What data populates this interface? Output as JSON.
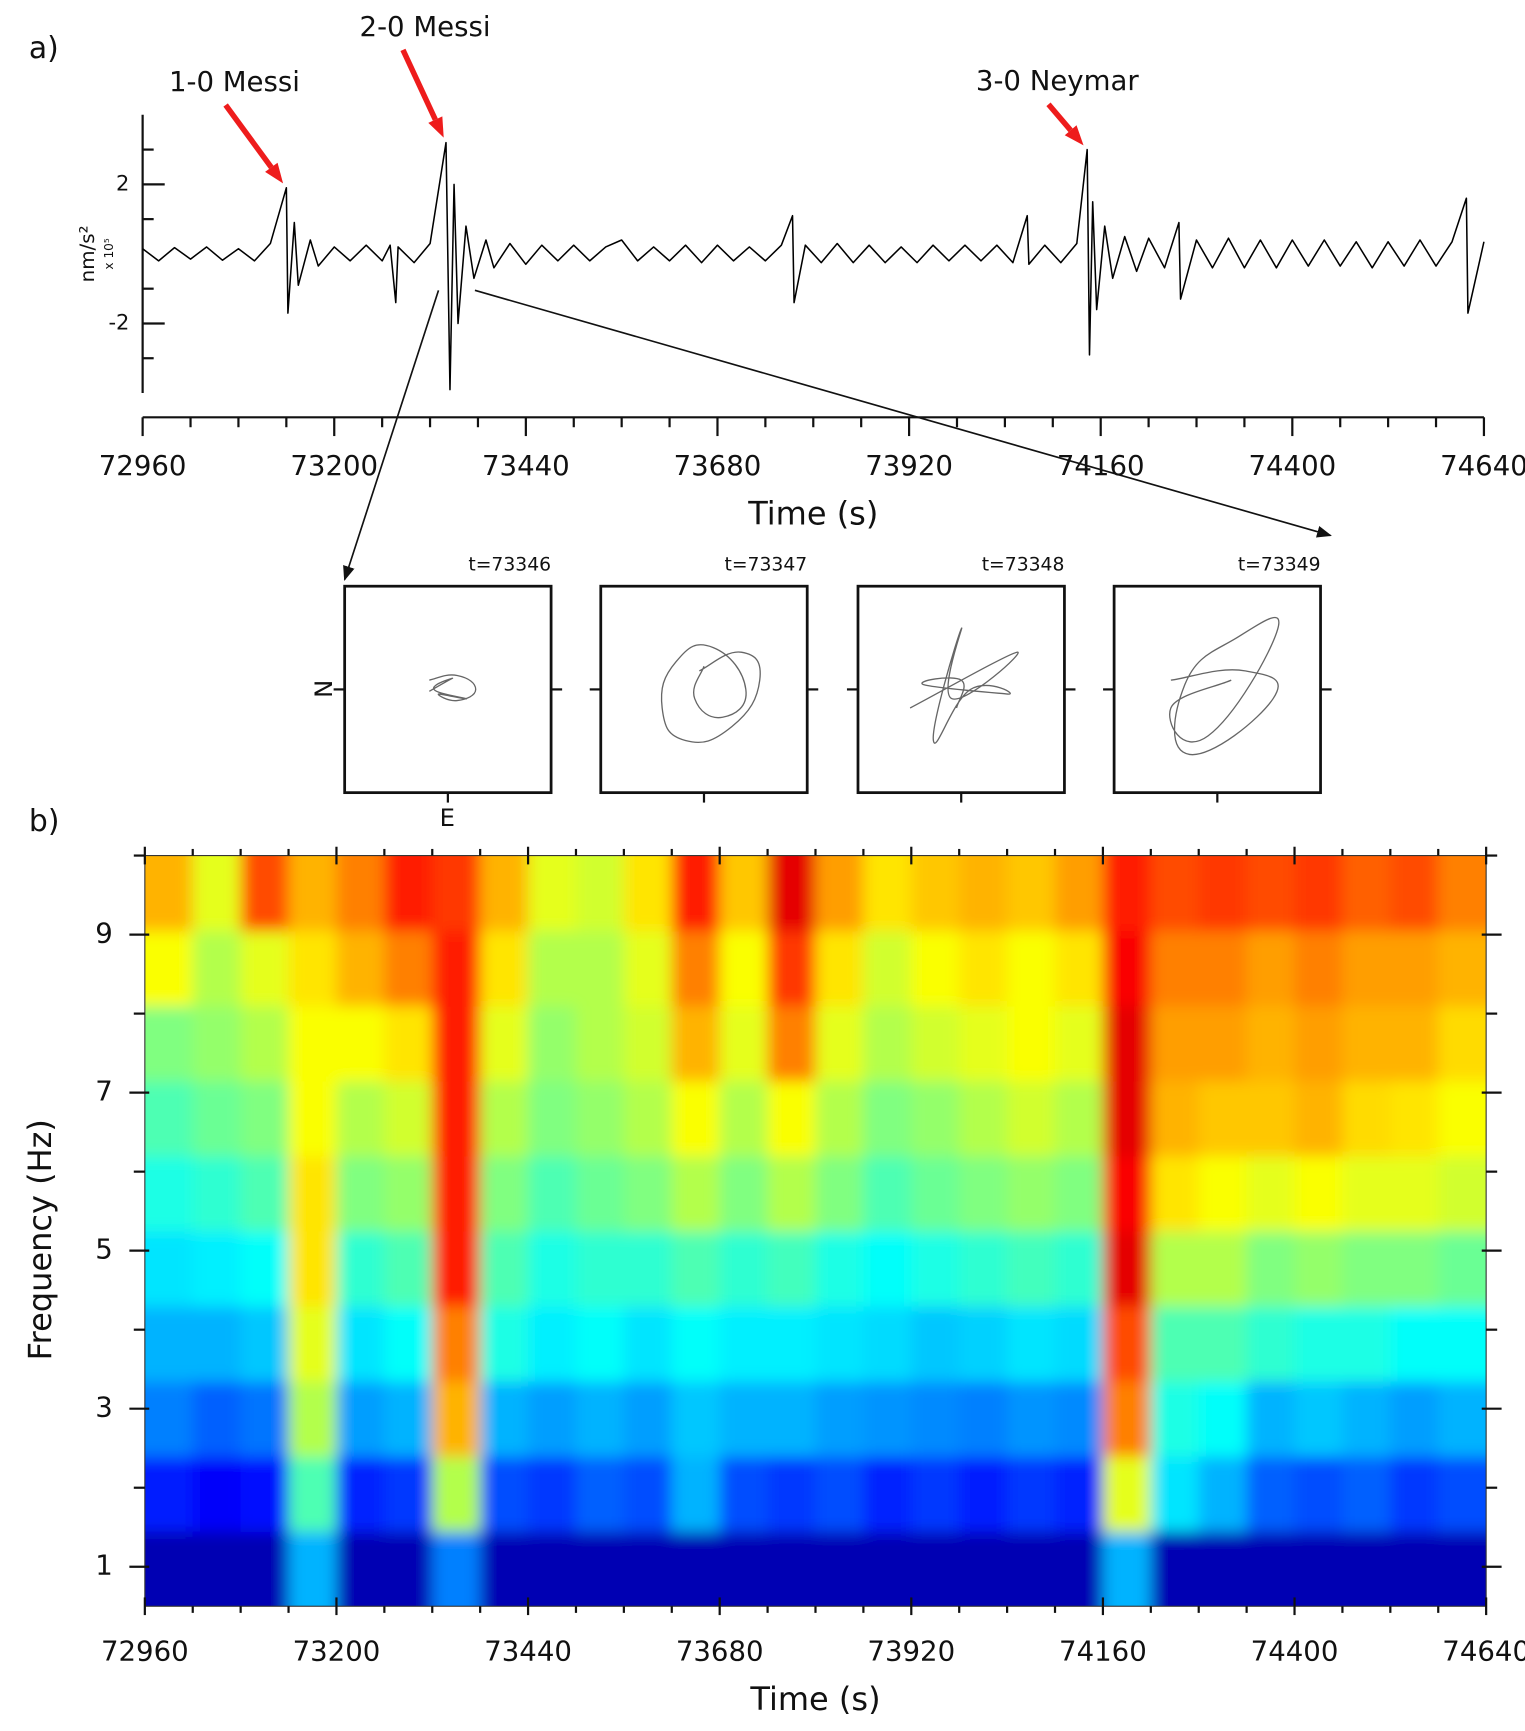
{
  "chart_data": [
    {
      "type": "line",
      "panel_label": "a)",
      "xlabel": "Time (s)",
      "ylabel": "nm/s²",
      "ylabel_scale": "x 10⁵",
      "xlim": [
        72960,
        74640
      ],
      "xticks": [
        72960,
        73200,
        73440,
        73680,
        73920,
        74160,
        74400,
        74640
      ],
      "xminorticks": [
        73020,
        73080,
        73140,
        73260,
        73320,
        73380,
        73500,
        73560,
        73620,
        73740,
        73800,
        73860,
        73980,
        74040,
        74100,
        74220,
        74280,
        74340,
        74460,
        74520,
        74580
      ],
      "ylim": [
        -4,
        4
      ],
      "yticks": [
        -2,
        2
      ],
      "yminorticks": [
        -3,
        -1,
        1,
        3
      ],
      "color": "#000000",
      "annotations": [
        {
          "text": "1-0 Messi",
          "x": 73140,
          "y": 1.9
        },
        {
          "text": "2-0 Messi",
          "x": 73340,
          "y": 3.2
        },
        {
          "text": "3-0 Neymar",
          "x": 74143,
          "y": 3.0
        }
      ],
      "annotation_color": "#ee1c1c",
      "x": [
        72960,
        72980,
        73000,
        73020,
        73040,
        73060,
        73080,
        73100,
        73120,
        73140,
        73142,
        73150,
        73155,
        73170,
        73180,
        73200,
        73220,
        73240,
        73260,
        73270,
        73277,
        73280,
        73300,
        73320,
        73340,
        73345,
        73350,
        73355,
        73365,
        73375,
        73390,
        73400,
        73420,
        73440,
        73460,
        73480,
        73500,
        73520,
        73540,
        73560,
        73580,
        73600,
        73620,
        73640,
        73660,
        73680,
        73700,
        73720,
        73740,
        73760,
        73774,
        73776,
        73790,
        73810,
        73830,
        73850,
        73870,
        73890,
        73910,
        73930,
        73950,
        73970,
        73990,
        74010,
        74030,
        74050,
        74068,
        74070,
        74090,
        74110,
        74130,
        74143,
        74146,
        74150,
        74155,
        74165,
        74175,
        74190,
        74205,
        74220,
        74240,
        74258,
        74260,
        74280,
        74300,
        74320,
        74340,
        74360,
        74380,
        74400,
        74420,
        74440,
        74460,
        74480,
        74500,
        74520,
        74540,
        74560,
        74580,
        74600,
        74618,
        74620,
        74640
      ],
      "values": [
        0.15,
        -0.2,
        0.18,
        -0.15,
        0.2,
        -0.18,
        0.15,
        -0.2,
        0.3,
        1.9,
        -1.7,
        0.9,
        -0.9,
        0.4,
        -0.35,
        0.2,
        -0.2,
        0.25,
        -0.2,
        0.25,
        -1.4,
        0.2,
        -0.25,
        0.3,
        3.2,
        -3.9,
        2.0,
        -2.0,
        0.8,
        -0.7,
        0.4,
        -0.4,
        0.3,
        -0.3,
        0.25,
        -0.2,
        0.25,
        -0.2,
        0.2,
        0.4,
        -0.2,
        0.2,
        -0.2,
        0.25,
        -0.25,
        0.25,
        -0.2,
        0.2,
        -0.2,
        0.25,
        1.1,
        -1.4,
        0.25,
        -0.25,
        0.3,
        -0.25,
        0.25,
        -0.25,
        0.2,
        -0.25,
        0.25,
        -0.2,
        0.25,
        -0.2,
        0.25,
        -0.25,
        1.1,
        -0.3,
        0.25,
        -0.25,
        0.3,
        3.0,
        -2.9,
        1.5,
        -1.6,
        0.8,
        -0.7,
        0.5,
        -0.5,
        0.45,
        -0.4,
        0.9,
        -1.3,
        0.4,
        -0.4,
        0.45,
        -0.4,
        0.4,
        -0.4,
        0.4,
        -0.35,
        0.4,
        -0.35,
        0.35,
        -0.4,
        0.35,
        -0.35,
        0.4,
        -0.35,
        0.35,
        1.6,
        -1.7,
        0.35
      ]
    },
    {
      "type": "particle_motion",
      "xlabel": "E",
      "ylabel": "N",
      "color": "#666666",
      "plots": [
        {
          "title": "t=73346",
          "e": [
            -0.2,
            0.1,
            0.3,
            0.1,
            -0.1,
            0.2,
            -0.15,
            0.05,
            -0.2
          ],
          "n": [
            0.1,
            0.15,
            0.0,
            -0.12,
            -0.05,
            -0.1,
            0.0,
            0.12,
            -0.02
          ]
        },
        {
          "title": "t=73347",
          "e": [
            -0.05,
            0.4,
            0.6,
            0.3,
            -0.2,
            -0.45,
            -0.3,
            0.1,
            0.45,
            0.2,
            -0.1,
            0.0
          ],
          "n": [
            0.2,
            0.4,
            0.1,
            -0.4,
            -0.55,
            -0.2,
            0.3,
            0.45,
            0.0,
            -0.3,
            -0.1,
            0.25
          ]
        },
        {
          "title": "t=73348",
          "e": [
            -0.55,
            0.6,
            -0.1,
            0.0,
            -0.3,
            0.1,
            0.5,
            -0.4,
            0.0,
            -0.05
          ],
          "n": [
            -0.2,
            0.4,
            -0.1,
            0.65,
            -0.55,
            0.0,
            -0.05,
            0.05,
            0.1,
            -0.2
          ]
        },
        {
          "title": "t=73349",
          "e": [
            -0.5,
            0.3,
            0.6,
            -0.3,
            -0.35,
            0.2,
            0.65,
            -0.1,
            -0.5,
            0.15
          ],
          "n": [
            0.1,
            0.2,
            -0.1,
            -0.7,
            0.05,
            0.55,
            0.65,
            -0.5,
            -0.2,
            0.1
          ]
        }
      ]
    },
    {
      "type": "heatmap",
      "panel_label": "b)",
      "xlabel": "Time (s)",
      "ylabel": "Frequency (Hz)",
      "colormap": "jet",
      "xlim": [
        72960,
        74640
      ],
      "xticks": [
        72960,
        73200,
        73440,
        73680,
        73920,
        74160,
        74400,
        74640
      ],
      "xminorticks": [
        73020,
        73080,
        73140,
        73260,
        73320,
        73380,
        73500,
        73560,
        73620,
        73740,
        73800,
        73860,
        73980,
        74040,
        74100,
        74220,
        74280,
        74340,
        74460,
        74520,
        74580
      ],
      "ylim": [
        0.5,
        10
      ],
      "yticks": [
        1,
        3,
        5,
        7,
        9
      ],
      "yminorticks": [
        2,
        4,
        6,
        8,
        10
      ],
      "xbins": [
        72960,
        73020,
        73080,
        73140,
        73200,
        73260,
        73320,
        73380,
        73440,
        73500,
        73560,
        73620,
        73680,
        73740,
        73800,
        73860,
        73920,
        73980,
        74040,
        74100,
        74160,
        74220,
        74280,
        74340,
        74400,
        74460,
        74520,
        74580,
        74640
      ],
      "ybins": [
        0.5,
        1.45,
        2.4,
        3.35,
        4.3,
        5.25,
        6.2,
        7.15,
        8.1,
        9.05,
        10
      ],
      "z": [
        [
          0.05,
          0.05,
          0.05,
          0.3,
          0.05,
          0.05,
          0.25,
          0.05,
          0.05,
          0.05,
          0.05,
          0.05,
          0.05,
          0.05,
          0.05,
          0.05,
          0.05,
          0.05,
          0.05,
          0.05,
          0.3,
          0.05,
          0.05,
          0.05,
          0.05,
          0.05,
          0.05,
          0.05
        ],
        [
          0.15,
          0.12,
          0.14,
          0.45,
          0.16,
          0.18,
          0.55,
          0.2,
          0.18,
          0.22,
          0.2,
          0.3,
          0.2,
          0.18,
          0.2,
          0.16,
          0.18,
          0.15,
          0.18,
          0.16,
          0.6,
          0.35,
          0.3,
          0.22,
          0.2,
          0.22,
          0.18,
          0.2
        ],
        [
          0.25,
          0.22,
          0.24,
          0.55,
          0.28,
          0.3,
          0.7,
          0.3,
          0.28,
          0.3,
          0.28,
          0.32,
          0.3,
          0.3,
          0.28,
          0.27,
          0.26,
          0.25,
          0.27,
          0.26,
          0.75,
          0.4,
          0.38,
          0.3,
          0.32,
          0.3,
          0.28,
          0.3
        ],
        [
          0.3,
          0.3,
          0.32,
          0.6,
          0.35,
          0.38,
          0.75,
          0.4,
          0.36,
          0.38,
          0.35,
          0.38,
          0.36,
          0.36,
          0.35,
          0.34,
          0.32,
          0.33,
          0.35,
          0.34,
          0.8,
          0.45,
          0.45,
          0.42,
          0.4,
          0.4,
          0.38,
          0.38
        ],
        [
          0.35,
          0.36,
          0.38,
          0.65,
          0.42,
          0.45,
          0.85,
          0.45,
          0.4,
          0.42,
          0.42,
          0.45,
          0.42,
          0.44,
          0.4,
          0.38,
          0.4,
          0.42,
          0.44,
          0.42,
          0.9,
          0.55,
          0.55,
          0.5,
          0.52,
          0.5,
          0.5,
          0.48
        ],
        [
          0.4,
          0.42,
          0.45,
          0.65,
          0.5,
          0.52,
          0.85,
          0.5,
          0.45,
          0.48,
          0.5,
          0.55,
          0.5,
          0.55,
          0.5,
          0.45,
          0.48,
          0.5,
          0.52,
          0.5,
          0.88,
          0.65,
          0.62,
          0.6,
          0.62,
          0.6,
          0.6,
          0.58
        ],
        [
          0.45,
          0.48,
          0.5,
          0.62,
          0.55,
          0.58,
          0.85,
          0.55,
          0.5,
          0.52,
          0.55,
          0.62,
          0.55,
          0.62,
          0.55,
          0.5,
          0.52,
          0.55,
          0.58,
          0.55,
          0.9,
          0.7,
          0.68,
          0.68,
          0.7,
          0.66,
          0.65,
          0.62
        ],
        [
          0.5,
          0.52,
          0.55,
          0.62,
          0.62,
          0.65,
          0.85,
          0.6,
          0.52,
          0.55,
          0.58,
          0.7,
          0.6,
          0.75,
          0.6,
          0.55,
          0.58,
          0.6,
          0.62,
          0.6,
          0.9,
          0.72,
          0.72,
          0.7,
          0.72,
          0.7,
          0.7,
          0.66
        ],
        [
          0.62,
          0.55,
          0.6,
          0.65,
          0.7,
          0.75,
          0.85,
          0.65,
          0.55,
          0.55,
          0.6,
          0.75,
          0.62,
          0.82,
          0.65,
          0.58,
          0.62,
          0.65,
          0.62,
          0.65,
          0.88,
          0.75,
          0.75,
          0.72,
          0.75,
          0.72,
          0.72,
          0.7
        ],
        [
          0.7,
          0.6,
          0.8,
          0.7,
          0.75,
          0.85,
          0.82,
          0.7,
          0.6,
          0.58,
          0.65,
          0.85,
          0.68,
          0.9,
          0.72,
          0.65,
          0.68,
          0.7,
          0.68,
          0.72,
          0.85,
          0.8,
          0.82,
          0.8,
          0.82,
          0.78,
          0.8,
          0.75
        ]
      ]
    }
  ]
}
